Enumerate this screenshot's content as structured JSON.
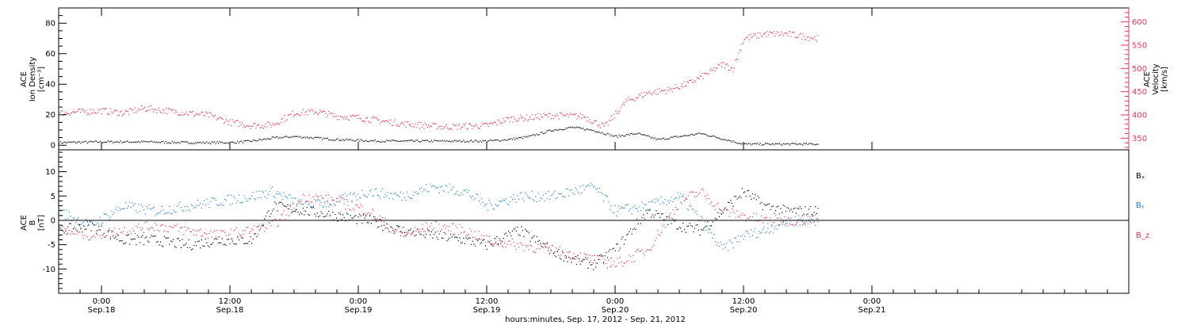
{
  "colors": {
    "density": "#000000",
    "velocity": "#e8345a",
    "bx": "#000000",
    "by": "#1c7fe0",
    "bz": "#e8345a",
    "axis": "#000000"
  },
  "time_axis": {
    "title": "hours:minutes, Sep. 17, 2012 - Sep. 21, 2012",
    "start_hours": -4,
    "end_hours": 96,
    "ticks": [
      {
        "h": 0,
        "time": "0:00",
        "date": "Sep.18"
      },
      {
        "h": 12,
        "time": "12:00",
        "date": "Sep.18"
      },
      {
        "h": 24,
        "time": "0:00",
        "date": "Sep.19"
      },
      {
        "h": 36,
        "time": "12:00",
        "date": "Sep.19"
      },
      {
        "h": 48,
        "time": "0:00",
        "date": "Sep.20"
      },
      {
        "h": 60,
        "time": "12:00",
        "date": "Sep.20"
      },
      {
        "h": 72,
        "time": "0:00",
        "date": "Sep.21"
      }
    ]
  },
  "top_panel": {
    "left_label": [
      "ACE",
      "Ion Density",
      "[cm⁻³]"
    ],
    "right_label": [
      "ACE",
      "Velocity",
      "[km/s]"
    ],
    "left_ticks": [
      "0",
      "20",
      "40",
      "60",
      "80"
    ],
    "right_ticks": [
      "350",
      "400",
      "450",
      "500",
      "550",
      "600"
    ]
  },
  "bottom_panel": {
    "left_label": [
      "ACE",
      "B",
      "[nT]"
    ],
    "left_ticks": [
      "-10",
      "-5",
      "0",
      "5",
      "10"
    ],
    "legend": [
      "Bₓ",
      "Bᵧ",
      "B_z"
    ]
  },
  "chart_data": [
    {
      "type": "scatter",
      "title": "",
      "xlabel": "hours:minutes, Sep. 17, 2012 - Sep. 21, 2012",
      "xlim": [
        "2012-09-17T20:00",
        "2012-09-21T00:00"
      ],
      "xtick_labels": [
        "0:00 Sep.18",
        "12:00 Sep.18",
        "0:00 Sep.19",
        "12:00 Sep.19",
        "0:00 Sep.20",
        "12:00 Sep.20",
        "0:00 Sep.21"
      ],
      "y_left": {
        "label": "ACE Ion Density [cm⁻³]",
        "ylim": [
          -3,
          90
        ]
      },
      "y_right": {
        "label": "ACE Velocity [km/s]",
        "ylim": [
          325,
          630
        ]
      },
      "grid": false,
      "series": [
        {
          "name": "Ion Density",
          "axis": "left",
          "color": "#000000",
          "x": [
            "2012-09-17T20:00",
            "2012-09-18T00:00",
            "2012-09-18T04:00",
            "2012-09-18T08:00",
            "2012-09-18T12:00",
            "2012-09-18T14:00",
            "2012-09-18T16:00",
            "2012-09-18T18:00",
            "2012-09-18T22:00",
            "2012-09-19T02:00",
            "2012-09-19T06:00",
            "2012-09-19T10:00",
            "2012-09-19T12:00",
            "2012-09-19T14:00",
            "2012-09-19T16:00",
            "2012-09-19T18:00",
            "2012-09-19T20:00",
            "2012-09-19T22:00",
            "2012-09-20T00:00",
            "2012-09-20T02:00",
            "2012-09-20T04:00",
            "2012-09-20T06:00",
            "2012-09-20T08:00",
            "2012-09-20T12:00",
            "2012-09-20T16:00",
            "2012-09-20T19:00"
          ],
          "values": [
            2,
            2.5,
            2.5,
            2,
            2,
            3,
            5,
            6,
            4,
            3,
            3,
            3,
            3,
            4,
            6,
            10,
            12,
            10,
            6,
            8,
            4,
            6,
            8,
            1,
            1,
            1
          ]
        },
        {
          "name": "Velocity",
          "axis": "right",
          "color": "#e8345a",
          "x": [
            "2012-09-17T20:00",
            "2012-09-18T00:00",
            "2012-09-18T02:00",
            "2012-09-18T04:00",
            "2012-09-18T06:00",
            "2012-09-18T08:00",
            "2012-09-18T10:00",
            "2012-09-18T12:00",
            "2012-09-18T14:00",
            "2012-09-18T16:00",
            "2012-09-18T18:00",
            "2012-09-18T20:00",
            "2012-09-18T22:00",
            "2012-09-19T00:00",
            "2012-09-19T04:00",
            "2012-09-19T08:00",
            "2012-09-19T12:00",
            "2012-09-19T14:00",
            "2012-09-19T16:00",
            "2012-09-19T18:00",
            "2012-09-19T21:00",
            "2012-09-19T23:00",
            "2012-09-20T01:00",
            "2012-09-20T03:00",
            "2012-09-20T05:00",
            "2012-09-20T07:00",
            "2012-09-20T09:00",
            "2012-09-20T10:00",
            "2012-09-20T11:00",
            "2012-09-20T12:00",
            "2012-09-20T14:00",
            "2012-09-20T16:00",
            "2012-09-20T19:00"
          ],
          "values": [
            405,
            410,
            405,
            415,
            410,
            405,
            400,
            385,
            378,
            380,
            405,
            408,
            398,
            395,
            382,
            375,
            378,
            392,
            395,
            400,
            398,
            375,
            430,
            448,
            455,
            470,
            495,
            510,
            500,
            565,
            575,
            575,
            565
          ]
        }
      ]
    },
    {
      "type": "scatter",
      "title": "",
      "xlabel": "hours:minutes, Sep. 17, 2012 - Sep. 21, 2012",
      "ylabel": "ACE B [nT]",
      "ylim": [
        -15,
        14.5
      ],
      "grid": false,
      "legend": "right",
      "x": [
        "2012-09-17T20:00",
        "2012-09-17T23:00",
        "2012-09-18T02:00",
        "2012-09-18T05:00",
        "2012-09-18T08:00",
        "2012-09-18T11:00",
        "2012-09-18T14:00",
        "2012-09-18T16:00",
        "2012-09-18T19:00",
        "2012-09-18T22:00",
        "2012-09-19T01:00",
        "2012-09-19T04:00",
        "2012-09-19T07:00",
        "2012-09-19T10:00",
        "2012-09-19T12:00",
        "2012-09-19T15:00",
        "2012-09-19T18:00",
        "2012-09-19T20:00",
        "2012-09-19T22:00",
        "2012-09-20T00:00",
        "2012-09-20T03:00",
        "2012-09-20T06:00",
        "2012-09-20T08:00",
        "2012-09-20T10:00",
        "2012-09-20T12:00",
        "2012-09-20T14:00",
        "2012-09-20T16:00",
        "2012-09-20T19:00"
      ],
      "series": [
        {
          "name": "Bₓ",
          "color": "#000000",
          "values": [
            -2,
            -1,
            -4,
            -4,
            -5,
            -4,
            -4,
            3,
            2,
            1,
            0,
            -2,
            -3,
            -4,
            -5,
            -2,
            -6,
            -8,
            -9,
            -6,
            2,
            -1,
            -2,
            2,
            6,
            3,
            2,
            2
          ]
        },
        {
          "name": "Bᵧ",
          "color": "#1c7fe0",
          "values": [
            2,
            -1,
            3,
            2,
            3,
            4,
            5,
            6,
            3,
            4,
            6,
            5,
            7,
            6,
            3,
            5,
            5,
            6,
            7,
            2,
            3,
            5,
            0,
            -6,
            -3,
            -2,
            0,
            0
          ]
        },
        {
          "name": "B_z",
          "color": "#e8345a",
          "values": [
            -2,
            -3,
            -2,
            -1,
            -2,
            -3,
            -2,
            -1,
            5,
            4,
            2,
            -3,
            -1,
            -2,
            -4,
            -5,
            -6,
            -7,
            -8,
            -9,
            -6,
            4,
            6,
            2,
            1,
            0,
            0,
            0.5
          ]
        }
      ]
    }
  ]
}
